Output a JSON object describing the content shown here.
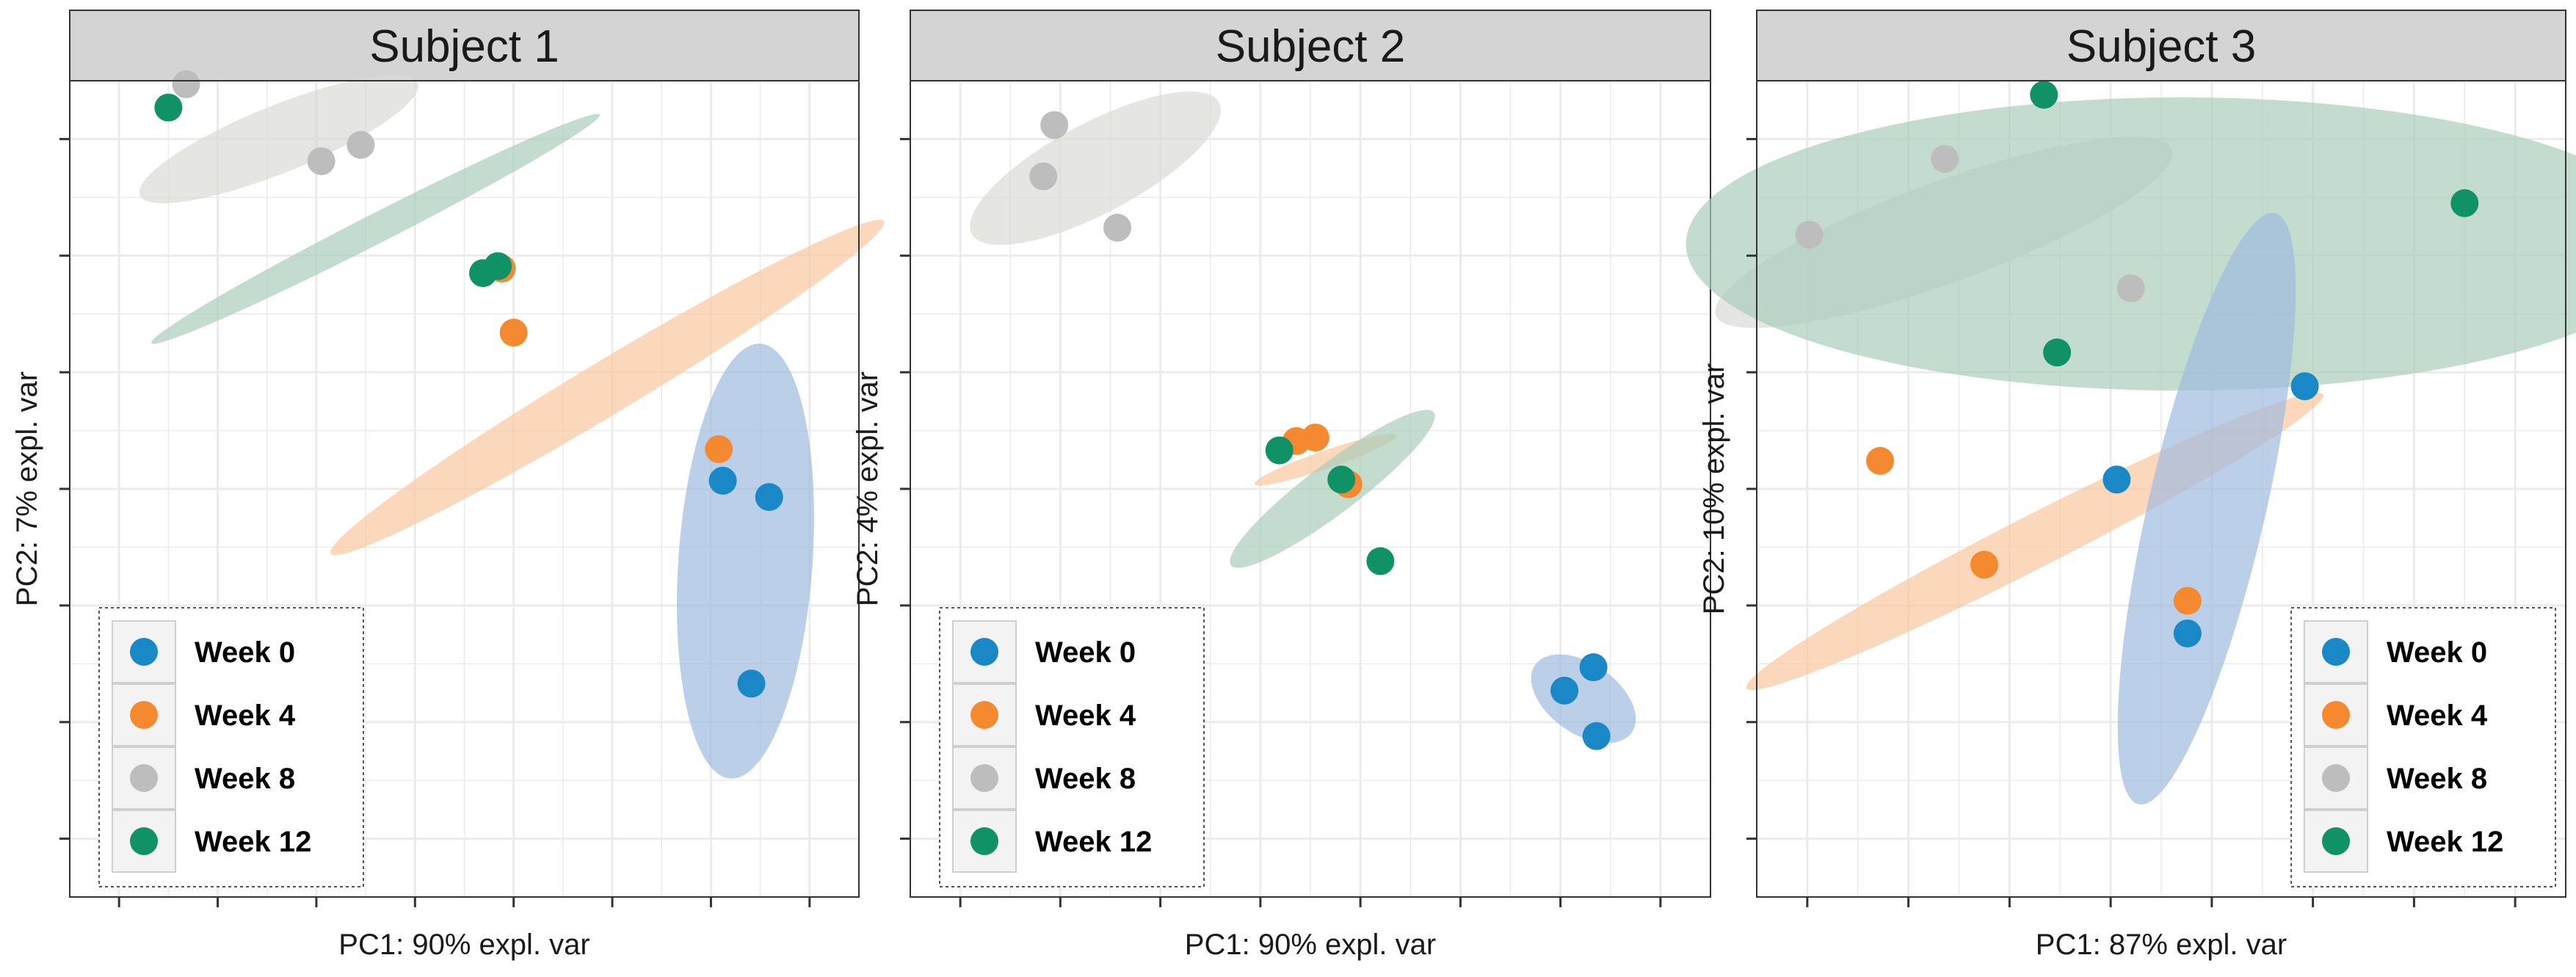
{
  "colors": {
    "week0": "#1a87c6",
    "week4": "#f5892f",
    "week8": "#bdbdbd",
    "week12": "#119166",
    "ellipse_week0": "#9fbbe0",
    "ellipse_week4": "#f9c89e",
    "ellipse_week8": "#dadad6",
    "ellipse_week12": "#a9cdb9",
    "strip": "#d4d4d4",
    "grid": "#ebebeb"
  },
  "legend": {
    "entries": [
      {
        "label": "Week 0",
        "key": "week0"
      },
      {
        "label": "Week 4",
        "key": "week4"
      },
      {
        "label": "Week 8",
        "key": "week8"
      },
      {
        "label": "Week 12",
        "key": "week12"
      }
    ]
  },
  "chart_data": [
    {
      "type": "scatter",
      "title": "Subject 1",
      "xlabel": "PC1: 90% expl. var",
      "ylabel": "PC2: 7% expl. var",
      "xlim": [
        -0.5,
        7.5
      ],
      "ylim": [
        -0.5,
        6.5
      ],
      "legend_position": "bottom-left",
      "series": [
        {
          "name": "Week 0",
          "key": "week0",
          "points": [
            [
              6.12,
              3.07
            ],
            [
              6.59,
              2.93
            ],
            [
              6.41,
              1.33
            ]
          ]
        },
        {
          "name": "Week 4",
          "key": "week4",
          "points": [
            [
              3.88,
              4.89
            ],
            [
              4.0,
              4.34
            ],
            [
              6.08,
              3.34
            ]
          ]
        },
        {
          "name": "Week 8",
          "key": "week8",
          "points": [
            [
              0.68,
              6.47
            ],
            [
              2.45,
              5.95
            ],
            [
              2.05,
              5.81
            ]
          ]
        },
        {
          "name": "Week 12",
          "key": "week12",
          "points": [
            [
              0.5,
              6.27
            ],
            [
              3.69,
              4.85
            ],
            [
              3.84,
              4.91
            ]
          ]
        }
      ],
      "ellipses": [
        {
          "key": "week0",
          "cx": 6.35,
          "cy": 2.38,
          "rx": 2.21,
          "ry": 0.68,
          "angle": 86
        },
        {
          "key": "week4",
          "cx": 4.95,
          "cy": 3.87,
          "rx": 3.27,
          "ry": 0.27,
          "angle": 31
        },
        {
          "key": "week8",
          "cx": 1.62,
          "cy": 6.0,
          "rx": 1.52,
          "ry": 0.34,
          "angle": 22
        },
        {
          "key": "week12",
          "cx": 2.6,
          "cy": 5.23,
          "rx": 2.55,
          "ry": 0.15,
          "angle": 27
        }
      ]
    },
    {
      "type": "scatter",
      "title": "Subject 2",
      "xlabel": "PC1: 90% expl. var",
      "ylabel": "PC2: 4% expl. var",
      "xlim": [
        -0.5,
        7.5
      ],
      "ylim": [
        -0.5,
        6.5
      ],
      "legend_position": "bottom-left",
      "series": [
        {
          "name": "Week 0",
          "key": "week0",
          "points": [
            [
              6.04,
              1.27
            ],
            [
              6.33,
              1.47
            ],
            [
              6.36,
              0.88
            ]
          ]
        },
        {
          "name": "Week 4",
          "key": "week4",
          "points": [
            [
              3.36,
              3.41
            ],
            [
              3.55,
              3.44
            ],
            [
              3.88,
              3.04
            ]
          ]
        },
        {
          "name": "Week 8",
          "key": "week8",
          "points": [
            [
              0.94,
              6.12
            ],
            [
              0.83,
              5.68
            ],
            [
              1.57,
              5.24
            ]
          ]
        },
        {
          "name": "Week 12",
          "key": "week12",
          "points": [
            [
              3.19,
              3.33
            ],
            [
              3.81,
              3.08
            ],
            [
              4.2,
              2.38
            ]
          ]
        }
      ],
      "ellipses": [
        {
          "key": "week0",
          "cx": 6.23,
          "cy": 1.2,
          "rx": 0.59,
          "ry": 0.35,
          "angle": -35
        },
        {
          "key": "week4",
          "cx": 3.65,
          "cy": 3.25,
          "rx": 0.75,
          "ry": 0.09,
          "angle": 19
        },
        {
          "key": "week12",
          "cx": 3.72,
          "cy": 3.0,
          "rx": 1.27,
          "ry": 0.25,
          "angle": 37
        },
        {
          "key": "week8",
          "cx": 1.35,
          "cy": 5.75,
          "rx": 1.4,
          "ry": 0.45,
          "angle": 28
        }
      ]
    },
    {
      "type": "scatter",
      "title": "Subject 3",
      "xlabel": "PC1: 87% expl. var",
      "ylabel": "PC2: 10% expl. var",
      "xlim": [
        -0.5,
        7.5
      ],
      "ylim": [
        -0.5,
        6.5
      ],
      "legend_position": "bottom-right",
      "series": [
        {
          "name": "Week 0",
          "key": "week0",
          "points": [
            [
              4.92,
              3.88
            ],
            [
              3.06,
              3.08
            ],
            [
              3.76,
              1.76
            ]
          ]
        },
        {
          "name": "Week 4",
          "key": "week4",
          "points": [
            [
              0.72,
              3.24
            ],
            [
              1.75,
              2.35
            ],
            [
              3.76,
              2.04
            ]
          ]
        },
        {
          "name": "Week 8",
          "key": "week8",
          "points": [
            [
              1.36,
              5.83
            ],
            [
              0.02,
              5.18
            ],
            [
              3.2,
              4.72
            ]
          ]
        },
        {
          "name": "Week 12",
          "key": "week12",
          "points": [
            [
              2.34,
              6.38
            ],
            [
              6.5,
              5.45
            ],
            [
              2.47,
              4.17
            ]
          ]
        }
      ],
      "ellipses": [
        {
          "key": "week8",
          "cx": 1.35,
          "cy": 5.2,
          "rx": 2.4,
          "ry": 0.5,
          "angle": 20
        },
        {
          "key": "week12",
          "cx": 3.7,
          "cy": 5.1,
          "rx": 4.9,
          "ry": 1.45,
          "angle": 0
        },
        {
          "key": "week4",
          "cx": 2.25,
          "cy": 2.55,
          "rx": 3.2,
          "ry": 0.26,
          "angle": 27
        },
        {
          "key": "week0",
          "cx": 3.95,
          "cy": 2.83,
          "rx": 3.0,
          "ry": 0.58,
          "angle": 77
        }
      ]
    }
  ]
}
